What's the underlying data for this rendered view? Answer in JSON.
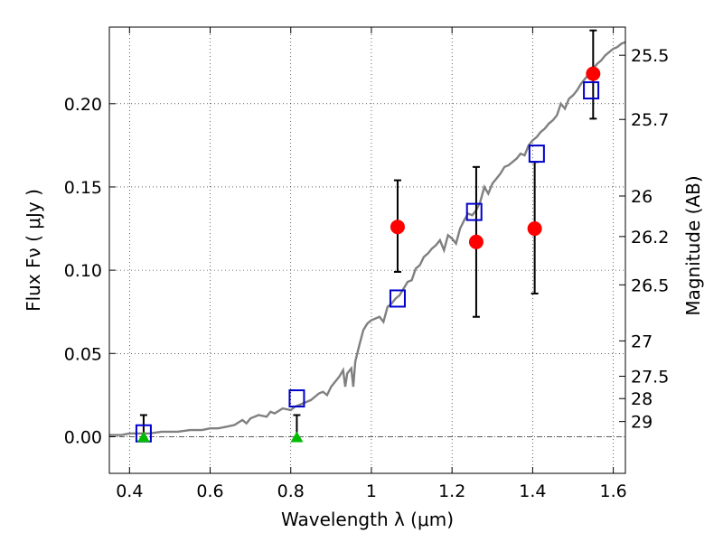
{
  "chart_data": {
    "type": "scatter",
    "xlabel": "Wavelength  λ (μm)",
    "ylabel": "Flux  Fν ( μJy )",
    "ylabel_right": "Magnitude (AB)",
    "xlim": [
      0.35,
      1.63
    ],
    "ylim": [
      -0.022,
      0.246
    ],
    "grid": true,
    "x_ticks": [
      {
        "value": 0.4,
        "label": "0.4"
      },
      {
        "value": 0.6,
        "label": "0.6"
      },
      {
        "value": 0.8,
        "label": "0.8"
      },
      {
        "value": 1.0,
        "label": "1"
      },
      {
        "value": 1.2,
        "label": "1.2"
      },
      {
        "value": 1.4,
        "label": "1.4"
      },
      {
        "value": 1.6,
        "label": "1.6"
      }
    ],
    "y_ticks": [
      {
        "value": 0.0,
        "label": "0.00"
      },
      {
        "value": 0.05,
        "label": "0.05"
      },
      {
        "value": 0.1,
        "label": "0.10"
      },
      {
        "value": 0.15,
        "label": "0.15"
      },
      {
        "value": 0.2,
        "label": "0.20"
      }
    ],
    "right_ticks": [
      {
        "value": 25.5,
        "label": "25.5"
      },
      {
        "value": 25.7,
        "label": "25.7"
      },
      {
        "value": 26,
        "label": "26"
      },
      {
        "value": 26.2,
        "label": "26.2"
      },
      {
        "value": 26.5,
        "label": "26.5"
      },
      {
        "value": 27,
        "label": "27"
      },
      {
        "value": 27.5,
        "label": "27.5"
      },
      {
        "value": 28,
        "label": "28"
      },
      {
        "value": 29,
        "label": "29"
      }
    ],
    "series": [
      {
        "kind": "line",
        "color": "#808080",
        "points": [
          [
            0.35,
            0.001
          ],
          [
            0.38,
            0.001
          ],
          [
            0.4,
            0.002
          ],
          [
            0.43,
            0.002
          ],
          [
            0.45,
            0.002
          ],
          [
            0.48,
            0.003
          ],
          [
            0.5,
            0.003
          ],
          [
            0.52,
            0.003
          ],
          [
            0.55,
            0.004
          ],
          [
            0.58,
            0.004
          ],
          [
            0.6,
            0.005
          ],
          [
            0.62,
            0.005
          ],
          [
            0.64,
            0.006
          ],
          [
            0.66,
            0.007
          ],
          [
            0.68,
            0.01
          ],
          [
            0.69,
            0.008
          ],
          [
            0.7,
            0.011
          ],
          [
            0.72,
            0.013
          ],
          [
            0.74,
            0.012
          ],
          [
            0.75,
            0.015
          ],
          [
            0.76,
            0.014
          ],
          [
            0.78,
            0.017
          ],
          [
            0.8,
            0.016
          ],
          [
            0.81,
            0.018
          ],
          [
            0.83,
            0.02
          ],
          [
            0.85,
            0.022
          ],
          [
            0.87,
            0.026
          ],
          [
            0.88,
            0.027
          ],
          [
            0.89,
            0.025
          ],
          [
            0.9,
            0.03
          ],
          [
            0.91,
            0.033
          ],
          [
            0.92,
            0.036
          ],
          [
            0.93,
            0.04
          ],
          [
            0.935,
            0.03
          ],
          [
            0.94,
            0.038
          ],
          [
            0.95,
            0.041
          ],
          [
            0.955,
            0.03
          ],
          [
            0.96,
            0.045
          ],
          [
            0.965,
            0.05
          ],
          [
            0.97,
            0.055
          ],
          [
            0.98,
            0.064
          ],
          [
            0.99,
            0.068
          ],
          [
            1.0,
            0.07
          ],
          [
            1.01,
            0.071
          ],
          [
            1.02,
            0.072
          ],
          [
            1.03,
            0.069
          ],
          [
            1.04,
            0.078
          ],
          [
            1.05,
            0.08
          ],
          [
            1.06,
            0.083
          ],
          [
            1.07,
            0.085
          ],
          [
            1.08,
            0.089
          ],
          [
            1.09,
            0.093
          ],
          [
            1.1,
            0.094
          ],
          [
            1.11,
            0.101
          ],
          [
            1.12,
            0.103
          ],
          [
            1.13,
            0.108
          ],
          [
            1.14,
            0.11
          ],
          [
            1.15,
            0.113
          ],
          [
            1.16,
            0.115
          ],
          [
            1.17,
            0.118
          ],
          [
            1.18,
            0.112
          ],
          [
            1.19,
            0.121
          ],
          [
            1.2,
            0.119
          ],
          [
            1.21,
            0.116
          ],
          [
            1.22,
            0.125
          ],
          [
            1.23,
            0.13
          ],
          [
            1.24,
            0.134
          ],
          [
            1.25,
            0.133
          ],
          [
            1.26,
            0.136
          ],
          [
            1.27,
            0.141
          ],
          [
            1.28,
            0.15
          ],
          [
            1.29,
            0.146
          ],
          [
            1.3,
            0.152
          ],
          [
            1.31,
            0.155
          ],
          [
            1.32,
            0.158
          ],
          [
            1.33,
            0.162
          ],
          [
            1.34,
            0.163
          ],
          [
            1.35,
            0.165
          ],
          [
            1.36,
            0.167
          ],
          [
            1.37,
            0.17
          ],
          [
            1.38,
            0.169
          ],
          [
            1.39,
            0.175
          ],
          [
            1.4,
            0.178
          ],
          [
            1.41,
            0.18
          ],
          [
            1.42,
            0.183
          ],
          [
            1.43,
            0.185
          ],
          [
            1.44,
            0.188
          ],
          [
            1.45,
            0.19
          ],
          [
            1.46,
            0.193
          ],
          [
            1.47,
            0.2
          ],
          [
            1.48,
            0.197
          ],
          [
            1.49,
            0.203
          ],
          [
            1.5,
            0.205
          ],
          [
            1.51,
            0.208
          ],
          [
            1.52,
            0.212
          ],
          [
            1.53,
            0.215
          ],
          [
            1.54,
            0.218
          ],
          [
            1.55,
            0.221
          ],
          [
            1.56,
            0.224
          ],
          [
            1.57,
            0.226
          ],
          [
            1.58,
            0.229
          ],
          [
            1.59,
            0.231
          ],
          [
            1.6,
            0.233
          ],
          [
            1.61,
            0.234
          ],
          [
            1.62,
            0.236
          ],
          [
            1.63,
            0.237
          ]
        ]
      },
      {
        "kind": "open-square",
        "color": "#0000cc",
        "points": [
          [
            0.435,
            0.002
          ],
          [
            0.815,
            0.023
          ],
          [
            1.065,
            0.083
          ],
          [
            1.255,
            0.135
          ],
          [
            1.41,
            0.17
          ],
          [
            1.545,
            0.208
          ]
        ]
      },
      {
        "kind": "filled-circle",
        "color": "#ff0000",
        "points": [
          {
            "x": 1.065,
            "y": 0.126,
            "err_low": 0.099,
            "err_high": 0.154
          },
          {
            "x": 1.26,
            "y": 0.117,
            "err_low": 0.072,
            "err_high": 0.162
          },
          {
            "x": 1.405,
            "y": 0.125,
            "err_low": 0.086,
            "err_high": 0.165
          },
          {
            "x": 1.55,
            "y": 0.218,
            "err_low": 0.191,
            "err_high": 0.244
          }
        ]
      },
      {
        "kind": "upper-limit-triangle",
        "color": "#00bb00",
        "points": [
          {
            "x": 0.435,
            "y": 0.0,
            "err_high": 0.013
          },
          {
            "x": 0.815,
            "y": 0.0,
            "err_high": 0.013
          }
        ]
      }
    ]
  }
}
